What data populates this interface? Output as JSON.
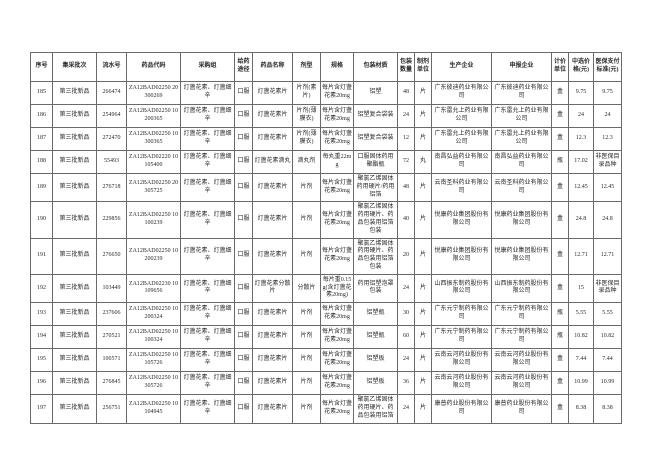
{
  "colors": {
    "paper": "#ffffff",
    "border": "#6a6a6a",
    "text": "#2a2a2a"
  },
  "table": {
    "headers": [
      "序号",
      "集采批次",
      "流水号",
      "药品代码",
      "采购组",
      "给药途径",
      "药品名称",
      "剂型",
      "规格",
      "包装材质",
      "包装数量",
      "制剂单位",
      "生产企业",
      "申报企业",
      "计价单位",
      "中选价格(元)",
      "医保支付标准(元)"
    ],
    "rows": [
      [
        "185",
        "第三批新品",
        "266474",
        "ZA12BAD02250 20300269",
        "灯盏花素、灯盏细辛",
        "口服",
        "灯盏花素片",
        "片剂(素片)",
        "每片含灯盏花素20mg",
        "铝塑",
        "48",
        "片",
        "广东彼迪药业有限公司",
        "广东彼迪药业有限公司",
        "盒",
        "9.75",
        "9.75"
      ],
      [
        "186",
        "第三批新品",
        "254964",
        "ZA12BAD02250 10200365",
        "灯盏花素、灯盏细辛",
        "口服",
        "灯盏花素片",
        "片剂(薄膜衣)",
        "每片含灯盏花素20mg",
        "铝塑复合袋装",
        "24",
        "片",
        "广东雷允上药业有限公司",
        "广东雷允上药业有限公司",
        "盒",
        "24",
        "24"
      ],
      [
        "187",
        "第三批新品",
        "272470",
        "ZA12BAD02250 10300365",
        "灯盏花素、灯盏细辛",
        "口服",
        "灯盏花素片",
        "片剂(薄膜衣)",
        "每片含灯盏花素20mg",
        "铝塑复合袋装",
        "12",
        "片",
        "广东雷允上药业有限公司",
        "广东雷允上药业有限公司",
        "盒",
        "12.3",
        "12.3"
      ],
      [
        "188",
        "第三批新品",
        "55493",
        "ZA12BAD02220 10105400",
        "灯盏花素、灯盏细辛",
        "口服",
        "灯盏花素滴丸",
        "滴丸剂",
        "每丸重22mg",
        "口服固体药用聚酯瓶",
        "72",
        "丸",
        "南昌弘益药业有限公司",
        "南昌弘益药业有限公司",
        "瓶",
        "17.02",
        "非医保目录品种"
      ],
      [
        "189",
        "第三批新品",
        "276718",
        "ZA12BAD02250 20305725",
        "灯盏花素、灯盏细辛",
        "口服",
        "灯盏花素片",
        "片剂",
        "每片含灯盏花素20mg",
        "聚氯乙烯固体药用硬片/药用铝箔",
        "48",
        "片",
        "云南圣科药业有限公司",
        "云南圣科药业有限公司",
        "盒",
        "12.45",
        "12.45"
      ],
      [
        "190",
        "第三批新品",
        "229856",
        "ZA12BAD02250 10100239",
        "灯盏花素、灯盏细辛",
        "口服",
        "灯盏花素片",
        "片剂",
        "每片含灯盏花素20mg",
        "聚氯乙烯固体药用硬片、药品包装用铝箔包装",
        "40",
        "片",
        "悦康药业集团股份有限公司",
        "悦康药业集团股份有限公司",
        "盒",
        "24.8",
        "24.8"
      ],
      [
        "191",
        "第三批新品",
        "276650",
        "ZA12BAD02250 10200239",
        "灯盏花素、灯盏细辛",
        "口服",
        "灯盏花素片",
        "片剂",
        "每片含灯盏花素20mg",
        "聚氯乙烯固体药用硬片、药品包装用铝箔包装",
        "20",
        "片",
        "悦康药业集团股份有限公司",
        "悦康药业集团股份有限公司",
        "盒",
        "12.71",
        "12.71"
      ],
      [
        "192",
        "第三批新品",
        "103449",
        "ZA12BAD02230 10109656",
        "灯盏花素、灯盏细辛",
        "口服",
        "灯盏花素分散片",
        "分散片",
        "每片重0.15g(含灯盏花素20mg)",
        "药用铝塑泡罩包装",
        "24",
        "片",
        "山西振东制药股份有限公司",
        "山西振东制药股份有限公司",
        "盒",
        "15",
        "非医保目录品种"
      ],
      [
        "193",
        "第三批新品",
        "237606",
        "ZA12BAD02250 10200324",
        "灯盏花素、灯盏细辛",
        "口服",
        "灯盏花素片",
        "片剂",
        "每片含灯盏花素20mg",
        "铝塑瓶",
        "30",
        "片",
        "广东元宁制药有限公司",
        "广东元宁制药有限公司",
        "瓶",
        "5.55",
        "5.55"
      ],
      [
        "194",
        "第三批新品",
        "270521",
        "ZA12BAD02250 10100324",
        "灯盏花素、灯盏细辛",
        "口服",
        "灯盏花素片",
        "片剂",
        "每片含灯盏花素20mg",
        "铝塑瓶",
        "60",
        "片",
        "广东元宁制药有限公司",
        "广东元宁制药有限公司",
        "瓶",
        "10.82",
        "10.82"
      ],
      [
        "195",
        "第三批新品",
        "100571",
        "ZA12BAD02250 10105726",
        "灯盏花素、灯盏细辛",
        "口服",
        "灯盏花素片",
        "片剂",
        "每片含灯盏花素20mg",
        "铝塑板",
        "24",
        "片",
        "云南云河药业股份有限公司",
        "云南云河药业股份有限公司",
        "盒",
        "7.44",
        "7.44"
      ],
      [
        "196",
        "第三批新品",
        "276845",
        "ZA12BAD02250 10305726",
        "灯盏花素、灯盏细辛",
        "口服",
        "灯盏花素片",
        "片剂",
        "每片含灯盏花素20mg",
        "铝塑板",
        "36",
        "片",
        "云南云河药业股份有限公司",
        "云南云河药业股份有限公司",
        "盒",
        "10.99",
        "10.99"
      ],
      [
        "197",
        "第三批新品",
        "256751",
        "ZA12BAD02250 10104945",
        "灯盏花素、灯盏细辛",
        "口服",
        "灯盏花素片",
        "片剂",
        "每片含灯盏花素20mg",
        "聚氯乙烯固体药用硬片、药品包装用铝箔",
        "24",
        "片",
        "康普药业股份有限公司",
        "康普药业股份有限公司",
        "盒",
        "8.38",
        "8.38"
      ]
    ]
  }
}
